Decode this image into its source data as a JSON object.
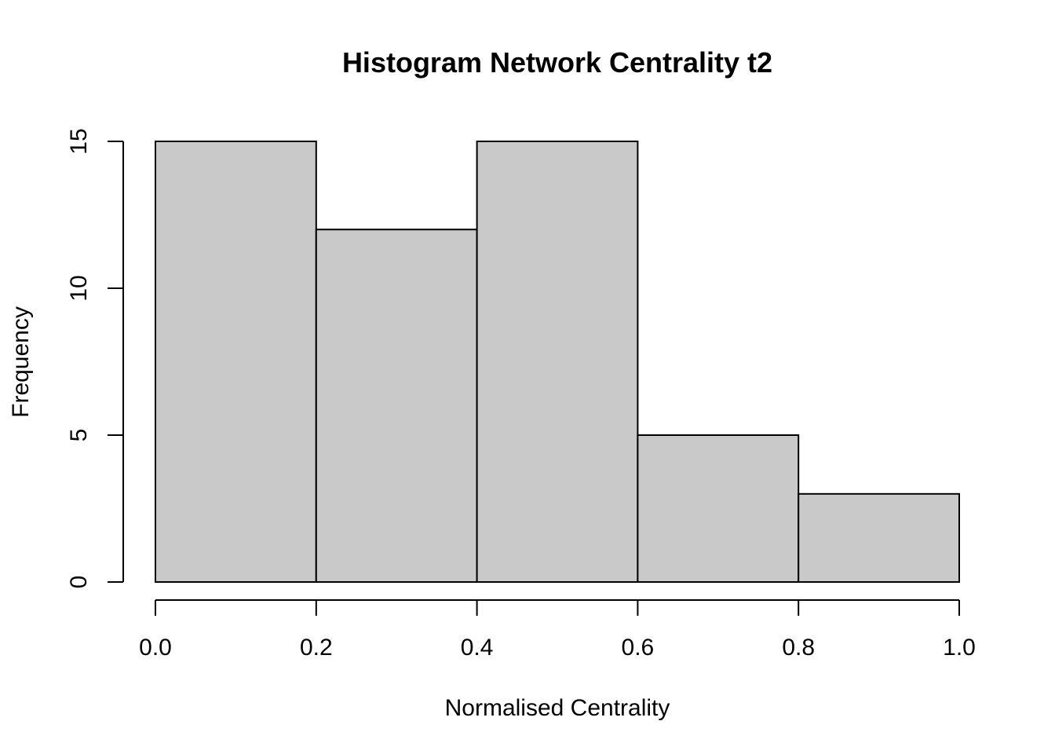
{
  "chart_data": {
    "type": "bar",
    "title": "Histogram Network Centrality t2",
    "xlabel": "Normalised Centrality",
    "ylabel": "Frequency",
    "bins": [
      {
        "start": 0.0,
        "end": 0.2,
        "value": 15
      },
      {
        "start": 0.2,
        "end": 0.4,
        "value": 12
      },
      {
        "start": 0.4,
        "end": 0.6,
        "value": 15
      },
      {
        "start": 0.6,
        "end": 0.8,
        "value": 5
      },
      {
        "start": 0.8,
        "end": 1.0,
        "value": 3
      }
    ],
    "xlim": [
      0.0,
      1.0
    ],
    "ylim": [
      0,
      15
    ],
    "x_ticks": [
      "0.0",
      "0.2",
      "0.4",
      "0.6",
      "0.8",
      "1.0"
    ],
    "y_ticks": [
      "0",
      "5",
      "10",
      "15"
    ],
    "bar_color": "#c9c9c9",
    "grid": false
  }
}
